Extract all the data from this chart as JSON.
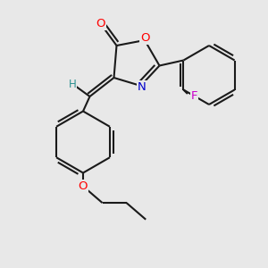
{
  "background_color": "#e8e8e8",
  "bond_color": "#1a1a1a",
  "bond_width": 1.5,
  "atom_colors": {
    "O": "#ff0000",
    "N": "#0000cc",
    "F": "#cc00cc",
    "H": "#2a9090",
    "C": "#1a1a1a"
  },
  "font_size": 9.5,
  "figsize": [
    3.0,
    3.0
  ],
  "dpi": 100
}
